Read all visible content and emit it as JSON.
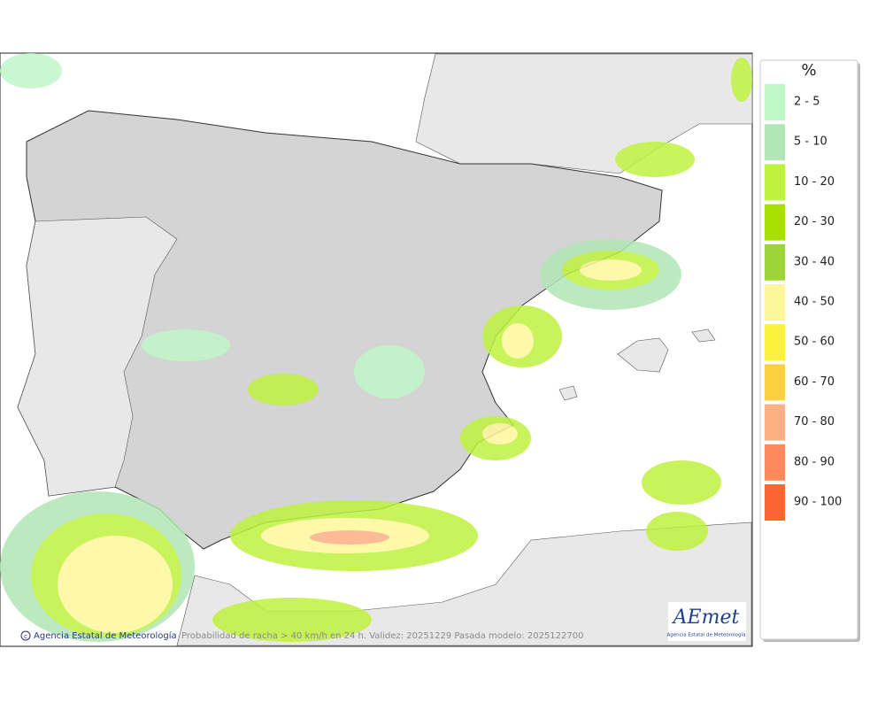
{
  "legend": {
    "unit": "%",
    "items": [
      {
        "label": "2 - 5",
        "color": "#bff7c8"
      },
      {
        "label": "5 - 10",
        "color": "#b2e6b6"
      },
      {
        "label": "10 - 20",
        "color": "#bff23e"
      },
      {
        "label": "20 - 30",
        "color": "#a8e000"
      },
      {
        "label": "30 - 40",
        "color": "#9ed43a"
      },
      {
        "label": "40 - 50",
        "color": "#fdf79c"
      },
      {
        "label": "50 - 60",
        "color": "#fcf23e"
      },
      {
        "label": "60 - 70",
        "color": "#fcd03e"
      },
      {
        "label": "70 - 80",
        "color": "#fcb084"
      },
      {
        "label": "80 - 90",
        "color": "#fc8a5a"
      },
      {
        "label": "90 - 100",
        "color": "#fc6432"
      }
    ]
  },
  "footer": {
    "copyright": "Agencia Estatal de Meteorología",
    "caption": "Probabilidad de racha > 40 km/h en 24 h. Validez: 20251229 Pasada modelo: 2025122700"
  },
  "logo": {
    "name": "AEmet",
    "subtitle": "Agencia Estatal de Meteorología"
  }
}
